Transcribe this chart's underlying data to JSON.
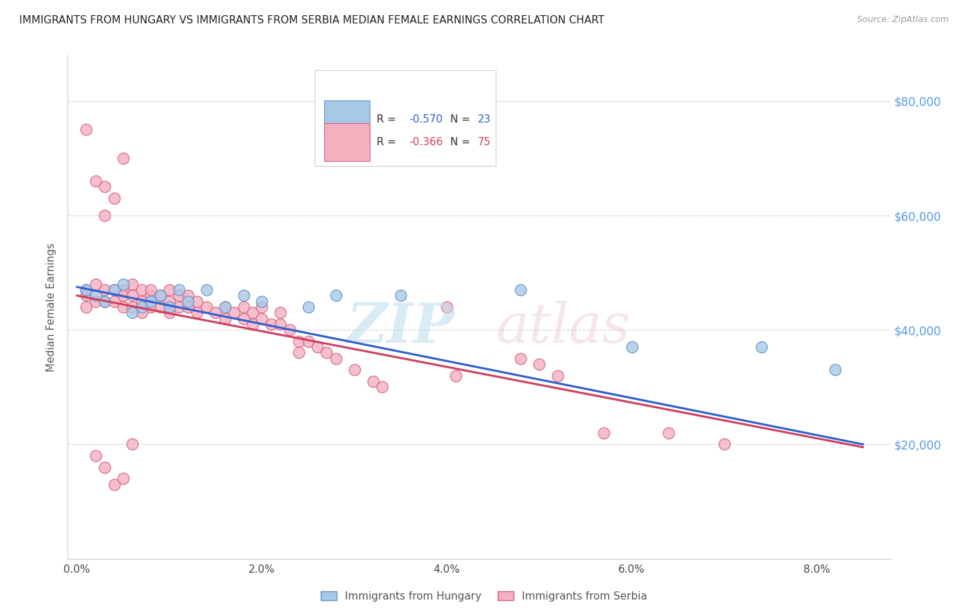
{
  "title": "IMMIGRANTS FROM HUNGARY VS IMMIGRANTS FROM SERBIA MEDIAN FEMALE EARNINGS CORRELATION CHART",
  "source": "Source: ZipAtlas.com",
  "ylabel": "Median Female Earnings",
  "xlabel_ticks": [
    "0.0%",
    "2.0%",
    "4.0%",
    "6.0%",
    "8.0%"
  ],
  "xlabel_vals": [
    0.0,
    0.02,
    0.04,
    0.06,
    0.08
  ],
  "ytick_labels": [
    "$20,000",
    "$40,000",
    "$60,000",
    "$80,000"
  ],
  "ytick_vals": [
    20000,
    40000,
    60000,
    80000
  ],
  "ylim": [
    0,
    88000
  ],
  "xlim": [
    -0.001,
    0.088
  ],
  "hungary_color": "#a8c8e8",
  "serbia_color": "#f5b0c0",
  "hungary_edge": "#6090c0",
  "serbia_edge": "#d06080",
  "trendline_hungary": "#3060d0",
  "trendline_serbia": "#d04060",
  "R_hungary": -0.57,
  "N_hungary": 23,
  "R_serbia": -0.366,
  "N_serbia": 75,
  "background_color": "#ffffff",
  "grid_color": "#d0d0d0",
  "hungary_x": [
    0.001,
    0.002,
    0.003,
    0.004,
    0.005,
    0.006,
    0.007,
    0.008,
    0.009,
    0.01,
    0.011,
    0.012,
    0.014,
    0.016,
    0.018,
    0.02,
    0.025,
    0.028,
    0.035,
    0.048,
    0.06,
    0.074,
    0.082
  ],
  "hungary_y": [
    47000,
    46000,
    45000,
    47000,
    48000,
    43000,
    44000,
    45000,
    46000,
    44000,
    47000,
    45000,
    47000,
    44000,
    46000,
    45000,
    44000,
    46000,
    46000,
    47000,
    37000,
    37000,
    33000
  ],
  "serbia_x": [
    0.001,
    0.001,
    0.001,
    0.001,
    0.002,
    0.002,
    0.002,
    0.003,
    0.003,
    0.003,
    0.003,
    0.004,
    0.004,
    0.004,
    0.005,
    0.005,
    0.005,
    0.005,
    0.006,
    0.006,
    0.006,
    0.007,
    0.007,
    0.007,
    0.008,
    0.008,
    0.008,
    0.009,
    0.009,
    0.01,
    0.01,
    0.01,
    0.011,
    0.011,
    0.012,
    0.012,
    0.013,
    0.013,
    0.014,
    0.015,
    0.016,
    0.016,
    0.017,
    0.018,
    0.018,
    0.019,
    0.019,
    0.02,
    0.02,
    0.021,
    0.022,
    0.022,
    0.023,
    0.024,
    0.024,
    0.025,
    0.026,
    0.027,
    0.028,
    0.03,
    0.032,
    0.033,
    0.04,
    0.041,
    0.048,
    0.05,
    0.052,
    0.057,
    0.064,
    0.07,
    0.002,
    0.003,
    0.004,
    0.005,
    0.006
  ],
  "serbia_y": [
    47000,
    46000,
    44000,
    75000,
    48000,
    45000,
    66000,
    47000,
    45000,
    65000,
    60000,
    47000,
    45000,
    63000,
    47000,
    46000,
    44000,
    70000,
    48000,
    46000,
    44000,
    47000,
    45000,
    43000,
    46000,
    44000,
    47000,
    46000,
    44000,
    47000,
    45000,
    43000,
    46000,
    44000,
    46000,
    44000,
    45000,
    43000,
    44000,
    43000,
    44000,
    42000,
    43000,
    44000,
    42000,
    43000,
    41000,
    44000,
    42000,
    41000,
    43000,
    41000,
    40000,
    38000,
    36000,
    38000,
    37000,
    36000,
    35000,
    33000,
    31000,
    30000,
    44000,
    32000,
    35000,
    34000,
    32000,
    22000,
    22000,
    20000,
    18000,
    16000,
    13000,
    14000,
    20000
  ],
  "trendline_h_x0": 0.0,
  "trendline_h_y0": 47500,
  "trendline_h_x1": 0.085,
  "trendline_h_y1": 20000,
  "trendline_s_x0": 0.0,
  "trendline_s_y0": 46000,
  "trendline_s_x1": 0.085,
  "trendline_s_y1": 19500
}
